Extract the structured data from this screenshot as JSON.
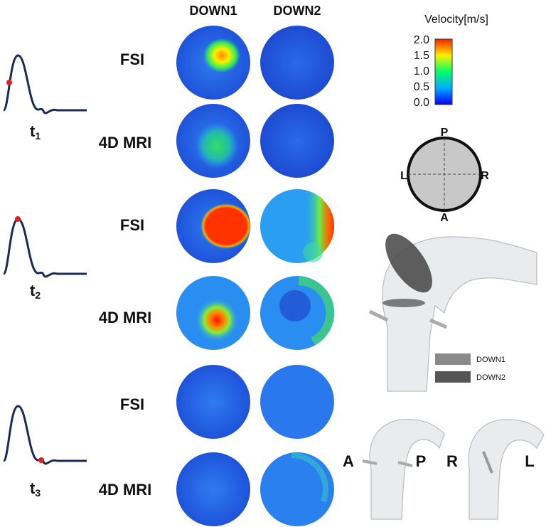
{
  "column_headers": [
    "DOWN1",
    "DOWN2"
  ],
  "rows": [
    {
      "time": "t",
      "subscript": "1",
      "labels": [
        "FSI",
        "4D MRI"
      ]
    },
    {
      "time": "t",
      "subscript": "2",
      "labels": [
        "FSI",
        "4D MRI"
      ]
    },
    {
      "time": "t",
      "subscript": "3",
      "labels": [
        "FSI",
        "4D MRI"
      ]
    }
  ],
  "colorbar": {
    "title": "Velocity[m/s]",
    "ticks": [
      "2.0",
      "1.5",
      "1.0",
      "0.5",
      "0.0"
    ]
  },
  "orientation": {
    "top": "P",
    "left": "L",
    "right": "R",
    "bottom": "A"
  },
  "plane_legend": [
    "DOWN1",
    "DOWN2"
  ],
  "views": [
    [
      "A",
      "P"
    ],
    [
      "R",
      "L"
    ]
  ]
}
